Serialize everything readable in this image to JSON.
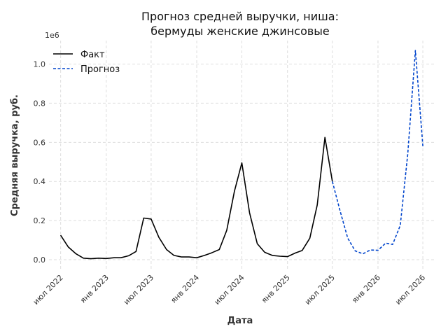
{
  "chart_data": {
    "type": "line",
    "title": [
      "Прогноз средней выручки, ниша:",
      "бермуды женские джинсовые"
    ],
    "xlabel": "Дата",
    "ylabel": "Средняя выручка, руб.",
    "y_multiplier_label": "1e6",
    "ylim": [
      -0.05,
      1.12
    ],
    "xlim": [
      "2022-05-15",
      "2026-08-15"
    ],
    "x_ticks": [
      {
        "date": "2022-07-01",
        "label": "июл 2022"
      },
      {
        "date": "2023-01-01",
        "label": "янв 2023"
      },
      {
        "date": "2023-07-01",
        "label": "июл 2023"
      },
      {
        "date": "2024-01-01",
        "label": "янв 2024"
      },
      {
        "date": "2024-07-01",
        "label": "июл 2024"
      },
      {
        "date": "2025-01-01",
        "label": "янв 2025"
      },
      {
        "date": "2025-07-01",
        "label": "июл 2025"
      },
      {
        "date": "2026-01-01",
        "label": "янв 2026"
      },
      {
        "date": "2026-07-01",
        "label": "июл 2026"
      }
    ],
    "y_ticks": [
      {
        "value": 0.0,
        "label": "0.0"
      },
      {
        "value": 0.2,
        "label": "0.2"
      },
      {
        "value": 0.4,
        "label": "0.4"
      },
      {
        "value": 0.6,
        "label": "0.6"
      },
      {
        "value": 0.8,
        "label": "0.8"
      },
      {
        "value": 1.0,
        "label": "1.0"
      }
    ],
    "grid": true,
    "legend_position": "top-left",
    "series": [
      {
        "name": "Факт",
        "color": "#000000",
        "style": "solid",
        "x": [
          "2022-07-01",
          "2022-08-01",
          "2022-09-01",
          "2022-10-01",
          "2022-11-01",
          "2022-12-01",
          "2023-01-01",
          "2023-02-01",
          "2023-03-01",
          "2023-04-01",
          "2023-05-01",
          "2023-06-01",
          "2023-07-01",
          "2023-08-01",
          "2023-09-01",
          "2023-10-01",
          "2023-11-01",
          "2023-12-01",
          "2024-01-01",
          "2024-02-01",
          "2024-03-01",
          "2024-04-01",
          "2024-05-01",
          "2024-06-01",
          "2024-07-01",
          "2024-08-01",
          "2024-09-01",
          "2024-10-01",
          "2024-11-01",
          "2024-12-01",
          "2025-01-01",
          "2025-02-01",
          "2025-03-01",
          "2025-04-01",
          "2025-05-01",
          "2025-06-01",
          "2025-07-01"
        ],
        "y": [
          0.125,
          0.065,
          0.03,
          0.008,
          0.005,
          0.008,
          0.006,
          0.01,
          0.01,
          0.02,
          0.042,
          0.213,
          0.208,
          0.115,
          0.052,
          0.022,
          0.014,
          0.014,
          0.01,
          0.022,
          0.035,
          0.052,
          0.15,
          0.35,
          0.495,
          0.24,
          0.082,
          0.038,
          0.022,
          0.018,
          0.016,
          0.034,
          0.047,
          0.11,
          0.28,
          0.625,
          0.4
        ]
      },
      {
        "name": "Прогноз",
        "color": "#0044cc",
        "style": "dashed",
        "x": [
          "2025-07-01",
          "2025-08-01",
          "2025-09-01",
          "2025-10-01",
          "2025-11-01",
          "2025-12-01",
          "2026-01-01",
          "2026-02-01",
          "2026-03-01",
          "2026-04-01",
          "2026-05-01",
          "2026-06-01",
          "2026-07-01"
        ],
        "y": [
          0.4,
          0.25,
          0.11,
          0.045,
          0.03,
          0.05,
          0.048,
          0.085,
          0.078,
          0.175,
          0.54,
          1.07,
          0.58
        ]
      }
    ]
  }
}
